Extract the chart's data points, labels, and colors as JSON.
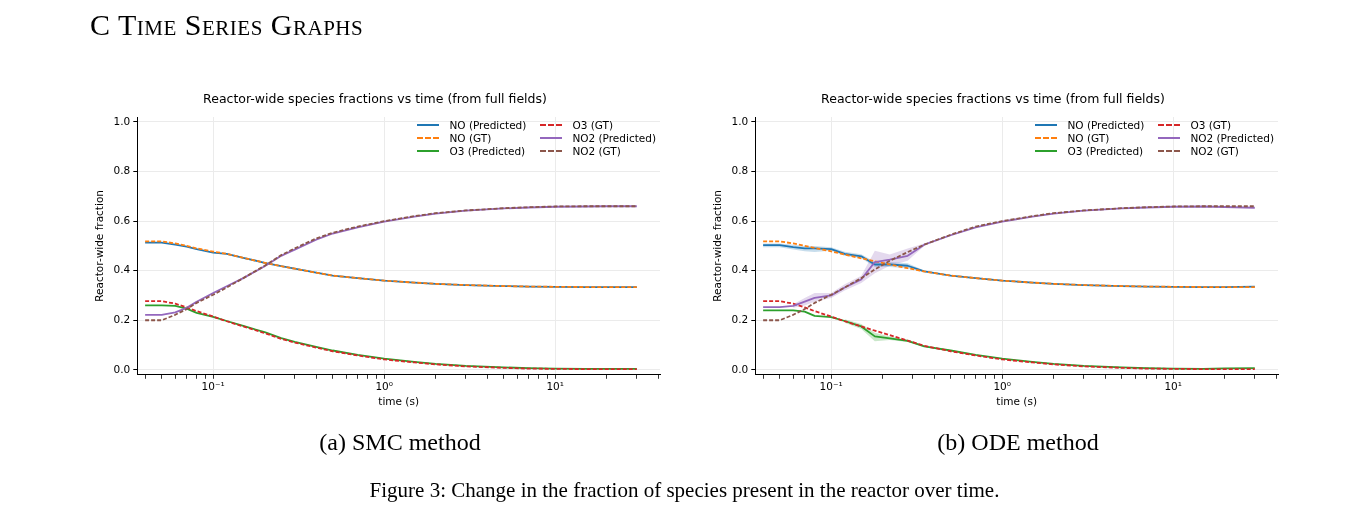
{
  "chart_data": [
    {
      "type": "other",
      "title": "C Time Series Graphs",
      "annotations": [
        "Figure 3: Change in the fraction of species present in the reactor over time."
      ]
    },
    {
      "type": "line",
      "title": "Reactor-wide species fractions vs time (from full fields)",
      "xlabel": "time (s)",
      "ylabel": "Reactor-wide fraction",
      "log": "x",
      "grid": true,
      "legend": "top right",
      "annotations": [
        "(a) SMC method"
      ],
      "xlim": [
        0.036,
        41
      ],
      "ylim": [
        -0.02,
        1.02
      ],
      "xticks": [
        {
          "value": 0.04,
          "label": null
        },
        {
          "value": 0.05,
          "label": null
        },
        {
          "value": 0.06,
          "label": null
        },
        {
          "value": 0.07,
          "label": null
        },
        {
          "value": 0.08,
          "label": null
        },
        {
          "value": 0.09,
          "label": null
        },
        {
          "value": 0.1,
          "label": "10⁻¹"
        },
        {
          "value": 0.2,
          "label": null
        },
        {
          "value": 0.3,
          "label": null
        },
        {
          "value": 0.4,
          "label": null
        },
        {
          "value": 0.5,
          "label": null
        },
        {
          "value": 0.6,
          "label": null
        },
        {
          "value": 0.7,
          "label": null
        },
        {
          "value": 0.8,
          "label": null
        },
        {
          "value": 0.9,
          "label": null
        },
        {
          "value": 1,
          "label": "10⁰"
        },
        {
          "value": 2,
          "label": null
        },
        {
          "value": 3,
          "label": null
        },
        {
          "value": 4,
          "label": null
        },
        {
          "value": 5,
          "label": null
        },
        {
          "value": 6,
          "label": null
        },
        {
          "value": 7,
          "label": null
        },
        {
          "value": 8,
          "label": null
        },
        {
          "value": 9,
          "label": null
        },
        {
          "value": 10,
          "label": "10¹"
        },
        {
          "value": 20,
          "label": null
        },
        {
          "value": 30,
          "label": null
        },
        {
          "value": 40,
          "label": null
        }
      ],
      "yticks": [
        {
          "value": 0,
          "label": "0.0"
        },
        {
          "value": 0.2,
          "label": "0.2"
        },
        {
          "value": 0.4,
          "label": "0.4"
        },
        {
          "value": 0.6,
          "label": "0.6"
        },
        {
          "value": 0.8,
          "label": "0.8"
        },
        {
          "value": 1,
          "label": "1.0"
        }
      ],
      "x": [
        0.04,
        0.05,
        0.06,
        0.07,
        0.08,
        0.1,
        0.12,
        0.15,
        0.2,
        0.25,
        0.3,
        0.4,
        0.5,
        0.7,
        1,
        1.5,
        2,
        3,
        5,
        7,
        10,
        15,
        20,
        30
      ],
      "series": [
        {
          "name": "NO (Predicted)",
          "color": "#1f77b4",
          "line_style": "solid",
          "values": [
            0.513,
            0.513,
            0.505,
            0.497,
            0.487,
            0.473,
            0.468,
            0.452,
            0.432,
            0.418,
            0.408,
            0.392,
            0.38,
            0.37,
            0.36,
            0.352,
            0.347,
            0.342,
            0.338,
            0.336,
            0.335,
            0.334,
            0.334,
            0.334
          ]
        },
        {
          "name": "NO (GT)",
          "color": "#ff7f0e",
          "line_style": "dashed",
          "values": [
            0.518,
            0.518,
            0.51,
            0.5,
            0.49,
            0.477,
            0.468,
            0.452,
            0.432,
            0.418,
            0.408,
            0.392,
            0.38,
            0.37,
            0.36,
            0.352,
            0.347,
            0.342,
            0.338,
            0.336,
            0.335,
            0.334,
            0.334,
            0.334
          ]
        },
        {
          "name": "O3 (Predicted)",
          "color": "#2ca02c",
          "line_style": "solid",
          "values": [
            0.26,
            0.26,
            0.258,
            0.247,
            0.23,
            0.214,
            0.197,
            0.177,
            0.152,
            0.128,
            0.113,
            0.093,
            0.078,
            0.06,
            0.045,
            0.032,
            0.024,
            0.016,
            0.01,
            0.007,
            0.005,
            0.004,
            0.004,
            0.004
          ]
        },
        {
          "name": "O3 (GT)",
          "color": "#d62728",
          "line_style": "dashed",
          "values": [
            0.277,
            0.277,
            0.267,
            0.252,
            0.237,
            0.215,
            0.196,
            0.175,
            0.148,
            0.125,
            0.11,
            0.09,
            0.075,
            0.058,
            0.042,
            0.03,
            0.022,
            0.014,
            0.008,
            0.005,
            0.004,
            0.003,
            0.003,
            0.003
          ]
        },
        {
          "name": "NO2 (Predicted)",
          "color": "#9467bd",
          "line_style": "solid",
          "values": [
            0.222,
            0.222,
            0.232,
            0.25,
            0.275,
            0.31,
            0.337,
            0.37,
            0.418,
            0.46,
            0.485,
            0.525,
            0.55,
            0.575,
            0.598,
            0.618,
            0.63,
            0.642,
            0.651,
            0.655,
            0.658,
            0.659,
            0.66,
            0.66
          ]
        },
        {
          "name": "NO2 (GT)",
          "color": "#8c564b",
          "line_style": "dashed",
          "values": [
            0.2,
            0.2,
            0.222,
            0.245,
            0.27,
            0.303,
            0.332,
            0.37,
            0.42,
            0.463,
            0.49,
            0.53,
            0.553,
            0.578,
            0.6,
            0.62,
            0.632,
            0.643,
            0.652,
            0.656,
            0.659,
            0.66,
            0.66,
            0.66
          ]
        }
      ]
    },
    {
      "type": "line",
      "title": "Reactor-wide species fractions vs time (from full fields)",
      "xlabel": "time (s)",
      "ylabel": "Reactor-wide fraction",
      "log": "x",
      "grid": true,
      "legend": "top right",
      "annotations": [
        "(b) ODE method"
      ],
      "xlim": [
        0.036,
        41
      ],
      "ylim": [
        -0.02,
        1.02
      ],
      "xticks": [
        {
          "value": 0.04,
          "label": null
        },
        {
          "value": 0.05,
          "label": null
        },
        {
          "value": 0.06,
          "label": null
        },
        {
          "value": 0.07,
          "label": null
        },
        {
          "value": 0.08,
          "label": null
        },
        {
          "value": 0.09,
          "label": null
        },
        {
          "value": 0.1,
          "label": "10⁻¹"
        },
        {
          "value": 0.2,
          "label": null
        },
        {
          "value": 0.3,
          "label": null
        },
        {
          "value": 0.4,
          "label": null
        },
        {
          "value": 0.5,
          "label": null
        },
        {
          "value": 0.6,
          "label": null
        },
        {
          "value": 0.7,
          "label": null
        },
        {
          "value": 0.8,
          "label": null
        },
        {
          "value": 0.9,
          "label": null
        },
        {
          "value": 1,
          "label": "10⁰"
        },
        {
          "value": 2,
          "label": null
        },
        {
          "value": 3,
          "label": null
        },
        {
          "value": 4,
          "label": null
        },
        {
          "value": 5,
          "label": null
        },
        {
          "value": 6,
          "label": null
        },
        {
          "value": 7,
          "label": null
        },
        {
          "value": 8,
          "label": null
        },
        {
          "value": 9,
          "label": null
        },
        {
          "value": 10,
          "label": "10¹"
        },
        {
          "value": 20,
          "label": null
        },
        {
          "value": 30,
          "label": null
        },
        {
          "value": 40,
          "label": null
        }
      ],
      "yticks": [
        {
          "value": 0,
          "label": "0.0"
        },
        {
          "value": 0.2,
          "label": "0.2"
        },
        {
          "value": 0.4,
          "label": "0.4"
        },
        {
          "value": 0.6,
          "label": "0.6"
        },
        {
          "value": 0.8,
          "label": "0.8"
        },
        {
          "value": 1,
          "label": "1.0"
        }
      ],
      "x": [
        0.04,
        0.05,
        0.06,
        0.07,
        0.08,
        0.1,
        0.12,
        0.15,
        0.18,
        0.22,
        0.28,
        0.35,
        0.5,
        0.7,
        1,
        1.5,
        2,
        3,
        5,
        7,
        10,
        15,
        20,
        30
      ],
      "series": [
        {
          "name": "NO (Predicted)",
          "color": "#1f77b4",
          "line_style": "solid",
          "values": [
            0.503,
            0.503,
            0.495,
            0.49,
            0.49,
            0.487,
            0.468,
            0.458,
            0.425,
            0.425,
            0.42,
            0.397,
            0.38,
            0.37,
            0.36,
            0.352,
            0.347,
            0.342,
            0.338,
            0.336,
            0.335,
            0.334,
            0.334,
            0.336
          ],
          "lower": [
            0.495,
            0.495,
            0.485,
            0.478,
            0.475,
            0.48,
            0.46,
            0.45,
            0.415,
            0.415,
            0.41,
            0.393,
            null,
            null,
            null,
            null,
            null,
            null,
            null,
            null,
            null,
            null,
            null,
            null
          ],
          "upper": [
            0.51,
            0.51,
            0.505,
            0.5,
            0.5,
            0.495,
            0.476,
            0.466,
            0.435,
            0.435,
            0.43,
            0.401,
            null,
            null,
            null,
            null,
            null,
            null,
            null,
            null,
            null,
            null,
            null,
            null
          ]
        },
        {
          "name": "NO (GT)",
          "color": "#ff7f0e",
          "line_style": "dashed",
          "values": [
            0.518,
            0.518,
            0.51,
            0.5,
            0.492,
            0.478,
            0.465,
            0.45,
            0.438,
            0.425,
            0.41,
            0.397,
            0.38,
            0.37,
            0.36,
            0.352,
            0.347,
            0.342,
            0.338,
            0.336,
            0.335,
            0.334,
            0.334,
            0.334
          ]
        },
        {
          "name": "O3 (Predicted)",
          "color": "#2ca02c",
          "line_style": "solid",
          "values": [
            0.24,
            0.24,
            0.24,
            0.235,
            0.218,
            0.213,
            0.197,
            0.175,
            0.135,
            0.127,
            0.117,
            0.095,
            0.078,
            0.06,
            0.045,
            0.032,
            0.024,
            0.016,
            0.01,
            0.007,
            0.005,
            0.004,
            0.006,
            0.007
          ],
          "lower": [
            null,
            null,
            null,
            null,
            null,
            null,
            0.19,
            0.165,
            0.115,
            0.12,
            0.112,
            0.092,
            null,
            null,
            null,
            null,
            null,
            null,
            null,
            null,
            null,
            null,
            null,
            null
          ],
          "upper": [
            null,
            null,
            null,
            null,
            null,
            null,
            0.204,
            0.185,
            0.15,
            0.135,
            0.122,
            0.098,
            null,
            null,
            null,
            null,
            null,
            null,
            null,
            null,
            null,
            null,
            null,
            null
          ]
        },
        {
          "name": "O3 (GT)",
          "color": "#d62728",
          "line_style": "dashed",
          "values": [
            0.277,
            0.277,
            0.267,
            0.252,
            0.237,
            0.215,
            0.196,
            0.175,
            0.158,
            0.14,
            0.118,
            0.097,
            0.075,
            0.058,
            0.042,
            0.03,
            0.022,
            0.014,
            0.008,
            0.005,
            0.004,
            0.003,
            0.003,
            0.003
          ]
        },
        {
          "name": "NO2 (Predicted)",
          "color": "#9467bd",
          "line_style": "solid",
          "values": [
            0.253,
            0.253,
            0.258,
            0.275,
            0.29,
            0.3,
            0.332,
            0.365,
            0.435,
            0.445,
            0.46,
            0.505,
            0.543,
            0.575,
            0.598,
            0.618,
            0.63,
            0.642,
            0.651,
            0.655,
            0.658,
            0.659,
            0.657,
            0.654
          ],
          "lower": [
            null,
            null,
            0.25,
            0.26,
            0.275,
            0.29,
            0.32,
            0.35,
            0.39,
            0.42,
            0.44,
            0.5,
            null,
            null,
            null,
            null,
            null,
            null,
            null,
            null,
            null,
            null,
            null,
            null
          ],
          "upper": [
            null,
            null,
            0.265,
            0.29,
            0.31,
            0.31,
            0.345,
            0.38,
            0.48,
            0.465,
            0.49,
            0.51,
            null,
            null,
            null,
            null,
            null,
            null,
            null,
            null,
            null,
            null,
            null,
            null
          ]
        },
        {
          "name": "NO2 (GT)",
          "color": "#8c564b",
          "line_style": "dashed",
          "values": [
            0.2,
            0.2,
            0.222,
            0.245,
            0.27,
            0.303,
            0.332,
            0.37,
            0.405,
            0.44,
            0.475,
            0.505,
            0.545,
            0.578,
            0.6,
            0.62,
            0.632,
            0.643,
            0.652,
            0.656,
            0.659,
            0.66,
            0.66,
            0.66
          ]
        }
      ]
    }
  ]
}
